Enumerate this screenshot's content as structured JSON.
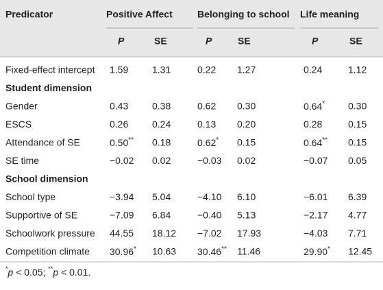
{
  "table": {
    "header": {
      "first": "Predicator",
      "groups": [
        "Positive Affect",
        "Belonging to school",
        "Life meaning"
      ],
      "sub": [
        "P",
        "SE",
        "P",
        "SE",
        "P",
        "SE"
      ]
    },
    "rows": [
      {
        "label": "Fixed-effect intercept",
        "cells": [
          "1.59",
          "1.31",
          "0.22",
          "1.27",
          "0.24",
          "1.12"
        ]
      },
      {
        "section": "Student dimension"
      },
      {
        "label": "Gender",
        "cells": [
          "0.43",
          "0.38",
          "0.62",
          "0.30",
          {
            "text": "0.64",
            "sup": "*"
          },
          "0.30"
        ]
      },
      {
        "label": "ESCS",
        "cells": [
          "0.26",
          "0.24",
          "0.13",
          "0.20",
          "0.28",
          "0.15"
        ]
      },
      {
        "label": "Attendance of SE",
        "cells": [
          {
            "text": "0.50",
            "sup": "**"
          },
          "0.18",
          {
            "text": "0.62",
            "sup": "*"
          },
          "0.15",
          {
            "text": "0.64",
            "sup": "**"
          },
          "0.15"
        ]
      },
      {
        "label": "SE time",
        "cells": [
          "−0.02",
          "0.02",
          "−0.03",
          "0.02",
          "−0.07",
          "0.05"
        ]
      },
      {
        "section": "School dimension"
      },
      {
        "label": "School type",
        "cells": [
          "−3.94",
          "5.04",
          "−4.10",
          "6.10",
          "−6.01",
          "6.39"
        ]
      },
      {
        "label": "Supportive of SE",
        "cells": [
          "−7.09",
          "6.84",
          "−0.40",
          "5.13",
          "−2.17",
          "4.77"
        ]
      },
      {
        "label": "Schoolwork pressure",
        "cells": [
          "44.55",
          "18.12",
          "−7.02",
          "17.93",
          "−4.03",
          "7.71"
        ]
      },
      {
        "label": "Competition climate",
        "cells": [
          {
            "text": "30.96",
            "sup": "*"
          },
          "10.63",
          {
            "text": "30.46",
            "sup": "**"
          },
          "11.46",
          {
            "text": "29.90",
            "sup": "*"
          },
          "12.45"
        ]
      }
    ],
    "footnote": [
      {
        "sup": "*"
      },
      {
        "text": "p"
      },
      {
        "plain": " < 0.05; "
      },
      {
        "sup": "**"
      },
      {
        "text": "p"
      },
      {
        "plain": " < 0.01."
      }
    ]
  }
}
